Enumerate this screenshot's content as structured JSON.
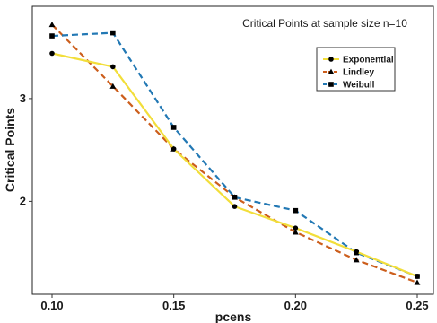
{
  "chart_data": {
    "type": "line",
    "title": "Critical Points at sample size n=10",
    "xlabel": "pcens",
    "ylabel": "Critical Points",
    "x": [
      0.1,
      0.125,
      0.15,
      0.175,
      0.2,
      0.225,
      0.25
    ],
    "x_ticks": [
      "0.10",
      "0.15",
      "0.20",
      "0.25"
    ],
    "y_ticks": [
      "2",
      "3"
    ],
    "xlim": [
      0.1,
      0.25
    ],
    "ylim": [
      1.2,
      3.82
    ],
    "grid": false,
    "legend_position": "top-right",
    "series": [
      {
        "name": "Exponential",
        "color": "#f2de3a",
        "dash": "solid",
        "marker": "circle",
        "values": [
          3.44,
          3.31,
          2.51,
          1.95,
          1.74,
          1.51,
          1.27
        ]
      },
      {
        "name": "Lindley",
        "color": "#cc5e1c",
        "dash": "dashed",
        "marker": "triangle",
        "values": [
          3.72,
          3.12,
          2.51,
          2.04,
          1.7,
          1.43,
          1.21
        ]
      },
      {
        "name": "Weibull",
        "color": "#2278b4",
        "dash": "dashed",
        "marker": "square",
        "values": [
          3.61,
          3.64,
          2.72,
          2.04,
          1.91,
          1.5,
          1.27
        ]
      }
    ]
  }
}
